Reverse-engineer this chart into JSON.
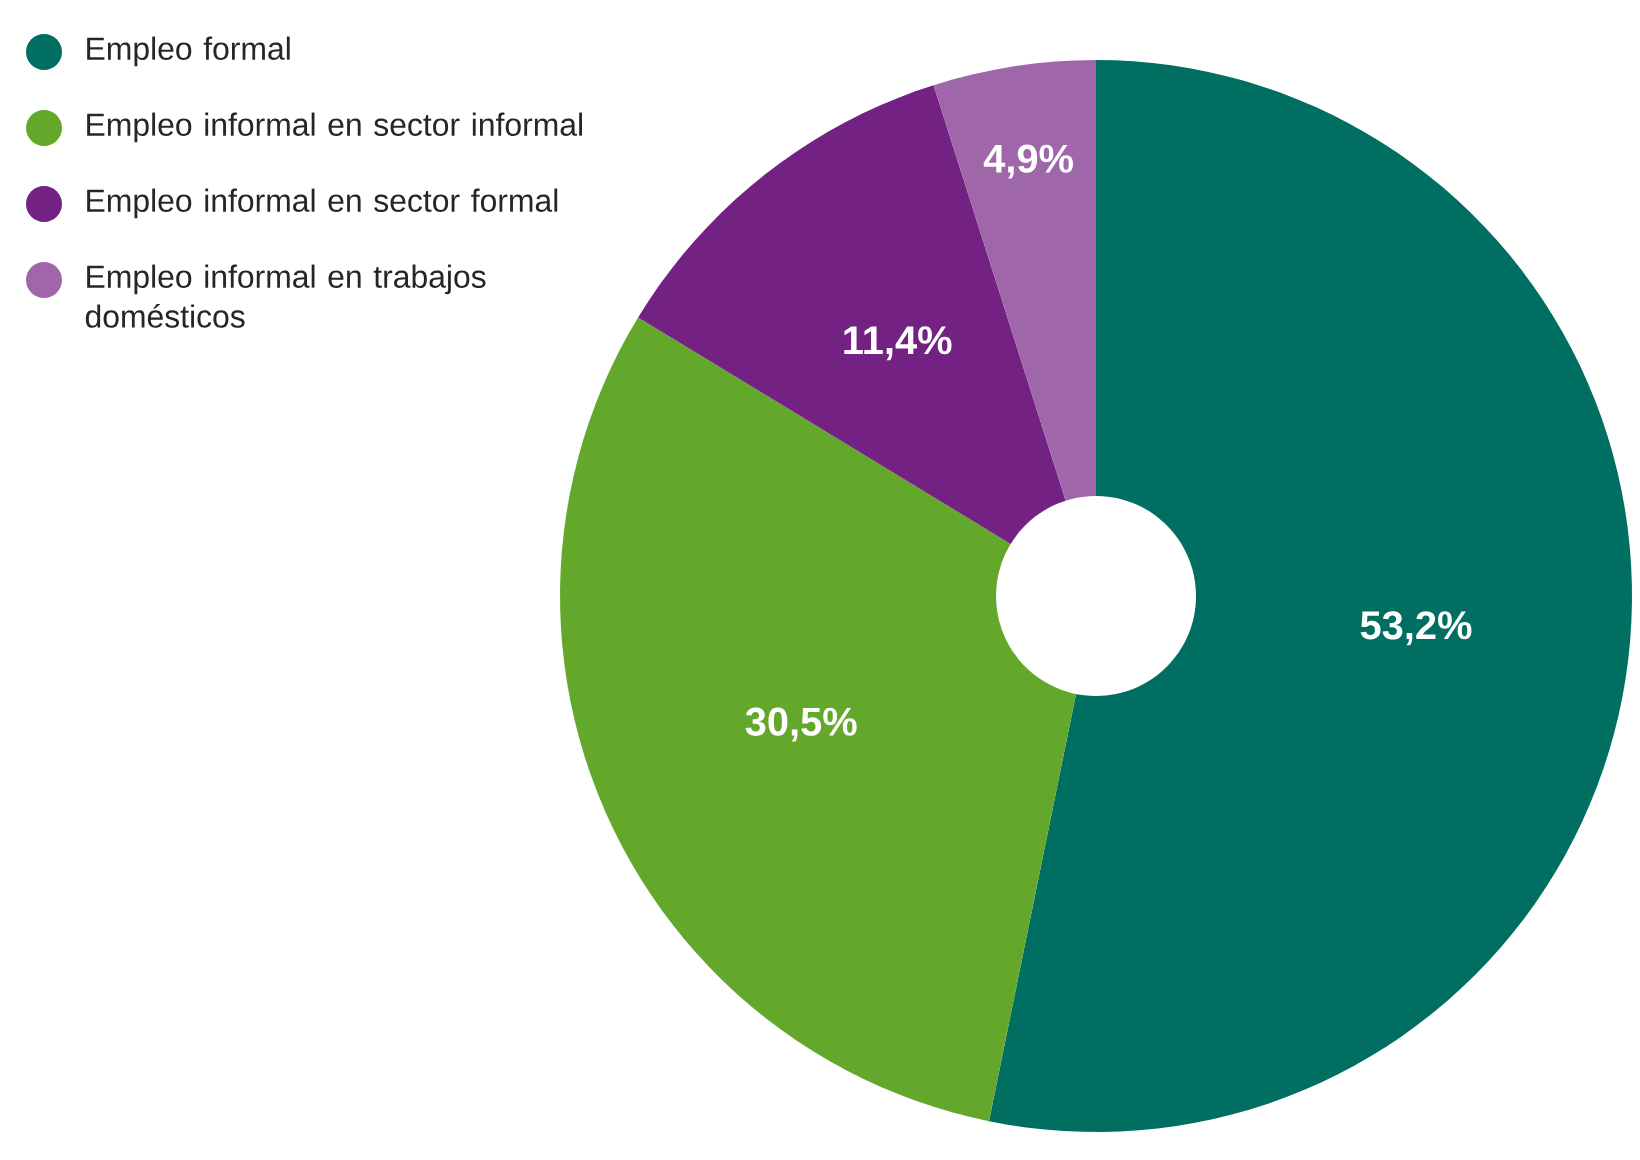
{
  "chart_data": {
    "type": "pie",
    "value_labels": [
      "53,2%",
      "30,5%",
      "11,4%",
      "4,9%"
    ],
    "categories": [
      "Empleo formal",
      "Empleo informal en sector informal",
      "Empleo informal en sector formal",
      "Empleo informal en trabajos domésticos"
    ],
    "values": [
      53.2,
      30.5,
      11.4,
      4.9
    ],
    "colors": [
      "#006f62",
      "#64a82b",
      "#732283",
      "#a066aa"
    ],
    "legend": "top left"
  }
}
